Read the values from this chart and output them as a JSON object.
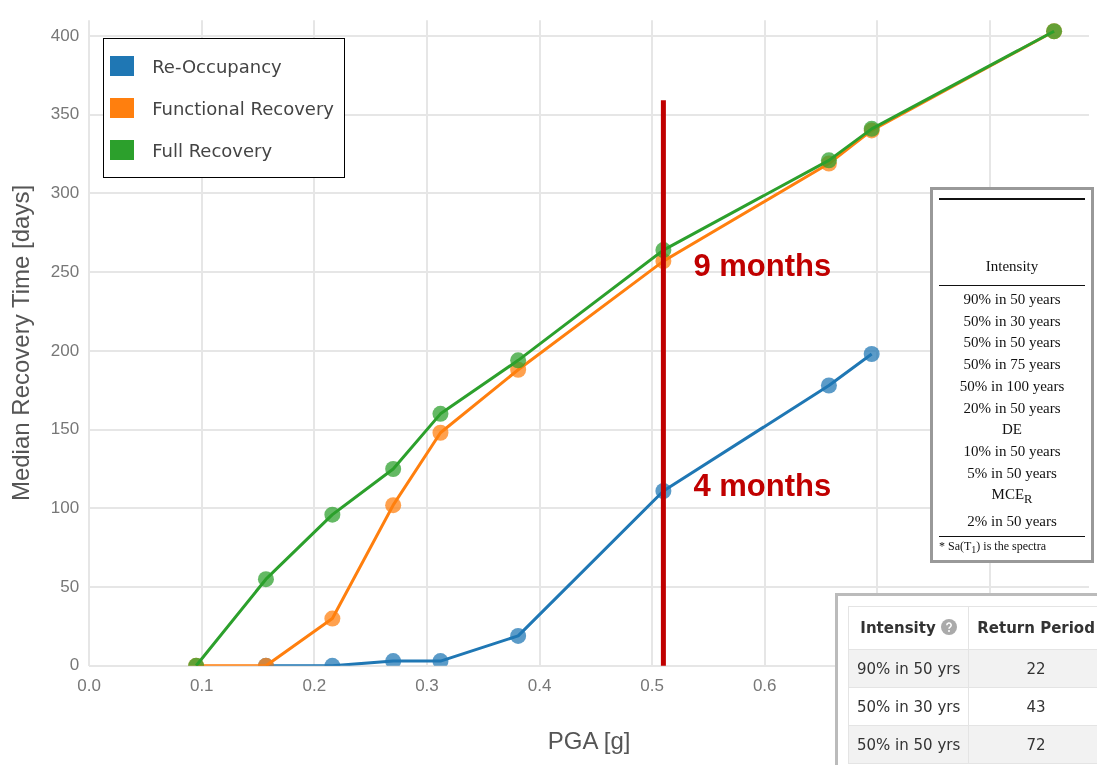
{
  "chart_data": [
    {
      "type": "line",
      "xlabel": "PGA [g]",
      "ylabel": "Median Recovery Time [days]",
      "x": [
        0.095,
        0.157,
        0.216,
        0.27,
        0.312,
        0.381,
        0.51,
        0.657,
        0.695,
        0.857
      ],
      "series": [
        {
          "name": "Re-Occupancy",
          "color": "#1f77b4",
          "values": [
            null,
            0,
            0,
            3,
            3,
            19,
            111,
            178,
            198,
            null
          ]
        },
        {
          "name": "Functional Recovery",
          "color": "#ff7f0e",
          "values": [
            0,
            0,
            30,
            102,
            148,
            188,
            257,
            319,
            340,
            403
          ]
        },
        {
          "name": "Full Recovery",
          "color": "#2ca02c",
          "values": [
            0,
            55,
            96,
            125,
            160,
            194,
            264,
            321,
            341,
            403
          ]
        }
      ],
      "xlim": [
        0,
        0.888
      ],
      "ylim": [
        0,
        410
      ],
      "xticks": [
        {
          "value": 0,
          "label": "0.0"
        },
        0.1,
        0.2,
        0.3,
        0.4,
        0.5,
        0.6,
        {
          "value": 0.7,
          "label": null
        },
        {
          "value": 0.8,
          "label": null
        }
      ],
      "yticks": [
        0,
        50,
        100,
        150,
        200,
        250,
        300,
        350,
        400
      ],
      "grid": true,
      "legend": "top left",
      "marker": "circle",
      "line_style": "solid",
      "ref_lines": [
        {
          "axis": "x",
          "value": 0.51,
          "color": "#c00000"
        }
      ],
      "annotations": [
        {
          "text": "9 months",
          "x": 0.51,
          "y": 253
        },
        {
          "text": "4 months",
          "x": 0.51,
          "y": 113
        }
      ]
    },
    {
      "type": "other",
      "xlabel": "Intensity",
      "categories": [
        "90% in 50 years",
        "50% in 30 years",
        "50% in 50 years",
        "50% in 75 years",
        "50% in 100 years",
        "20% in 50 years",
        "DE",
        "10% in 50 years",
        "5% in 50 years",
        "MCE$_{R}$",
        "2% in 50 years"
      ],
      "annotations": [
        "* Sa(T$_{1}$) is the spectra"
      ]
    },
    {
      "type": "other",
      "xlabel": "Intensity",
      "ylabel": "Return Period",
      "categories": [
        "90% in 50 yrs",
        "50% in 30 yrs",
        "50% in 50 yrs"
      ],
      "values": [
        22,
        43,
        72
      ],
      "data_labels": true
    }
  ]
}
